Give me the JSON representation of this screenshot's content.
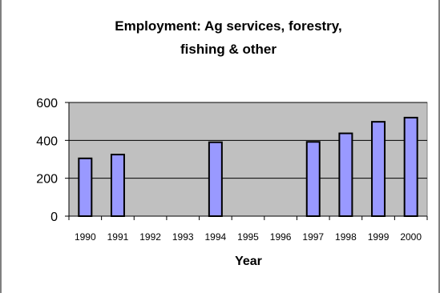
{
  "chart_data": {
    "type": "bar",
    "title_lines": [
      "Employment: Ag services, forestry,",
      "fishing & other"
    ],
    "xlabel": "Year",
    "ylabel": "",
    "categories": [
      "1990",
      "1991",
      "1992",
      "1993",
      "1994",
      "1995",
      "1996",
      "1997",
      "1998",
      "1999",
      "2000"
    ],
    "series": [
      {
        "values": [
          305,
          325,
          null,
          null,
          390,
          null,
          null,
          392,
          437,
          498,
          520
        ]
      }
    ],
    "ylim": [
      0,
      600
    ],
    "yticks": [
      "0",
      "200",
      "400",
      "600"
    ],
    "grid": true,
    "legend": "none",
    "colors": {
      "bar_fill": "#9999ff",
      "bar_stroke": "#000000",
      "plot_background": "#c0c0c0",
      "gridline": "#000000"
    }
  }
}
